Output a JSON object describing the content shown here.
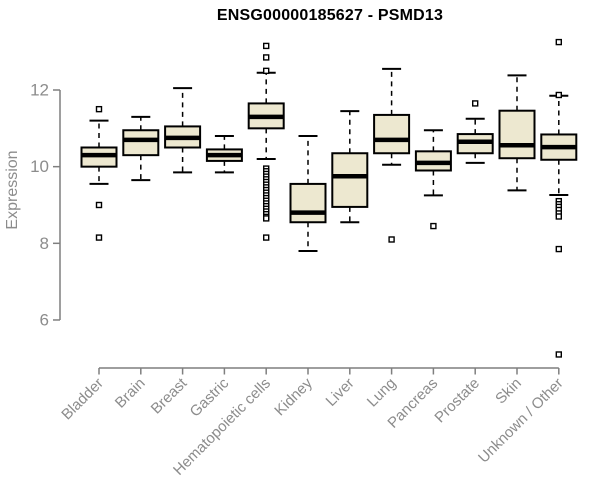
{
  "colors": {
    "box_fill": "#EDE8D0",
    "box_line": "#000000",
    "median_line": "#000000",
    "whisker_line": "#000000",
    "flier_fill": "#FFFFFF",
    "axis": "#7F7F7F",
    "tick_label": "#8C8C8C",
    "title_color": "#000000",
    "background": "#FFFFFF"
  },
  "chart_data": {
    "type": "boxplot",
    "title": "ENSG00000185627 - PSMD13",
    "xlabel": "",
    "ylabel": "Expression",
    "yticks": [
      6,
      8,
      10,
      12
    ],
    "ylim": [
      5.0,
      13.5
    ],
    "grid": false,
    "legend": "none",
    "categories": [
      "Bladder",
      "Brain",
      "Breast",
      "Gastric",
      "Hematopoietic cells",
      "Kidney",
      "Liver",
      "Lung",
      "Pancreas",
      "Prostate",
      "Skin",
      "Unknown / Other"
    ],
    "boxes": [
      {
        "category": "Bladder",
        "whislo": 9.55,
        "q1": 10.0,
        "med": 10.3,
        "q3": 10.5,
        "whishi": 11.2,
        "fliers": [
          11.5,
          9.0,
          8.15
        ]
      },
      {
        "category": "Brain",
        "whislo": 9.65,
        "q1": 10.3,
        "med": 10.7,
        "q3": 10.95,
        "whishi": 11.3,
        "fliers": []
      },
      {
        "category": "Breast",
        "whislo": 9.85,
        "q1": 10.5,
        "med": 10.75,
        "q3": 11.05,
        "whishi": 12.05,
        "fliers": []
      },
      {
        "category": "Gastric",
        "whislo": 9.85,
        "q1": 10.15,
        "med": 10.3,
        "q3": 10.45,
        "whishi": 10.8,
        "fliers": []
      },
      {
        "category": "Hematopoietic cells",
        "whislo": 10.2,
        "q1": 11.0,
        "med": 11.3,
        "q3": 11.65,
        "whishi": 12.45,
        "fliers": [
          13.15,
          12.85,
          12.5,
          9.95,
          9.88,
          9.81,
          9.74,
          9.67,
          9.6,
          9.53,
          9.46,
          9.39,
          9.32,
          9.25,
          9.18,
          9.11,
          9.04,
          8.97,
          8.9,
          8.83,
          8.76,
          8.69,
          8.65,
          8.15
        ]
      },
      {
        "category": "Kidney",
        "whislo": 7.8,
        "q1": 8.55,
        "med": 8.8,
        "q3": 9.55,
        "whishi": 10.8,
        "fliers": []
      },
      {
        "category": "Liver",
        "whislo": 8.55,
        "q1": 8.95,
        "med": 9.75,
        "q3": 10.35,
        "whishi": 11.45,
        "fliers": []
      },
      {
        "category": "Lung",
        "whislo": 10.05,
        "q1": 10.35,
        "med": 10.7,
        "q3": 11.35,
        "whishi": 12.55,
        "fliers": [
          8.1
        ]
      },
      {
        "category": "Pancreas",
        "whislo": 9.25,
        "q1": 9.9,
        "med": 10.1,
        "q3": 10.4,
        "whishi": 10.95,
        "fliers": [
          8.45
        ]
      },
      {
        "category": "Prostate",
        "whislo": 10.1,
        "q1": 10.35,
        "med": 10.65,
        "q3": 10.85,
        "whishi": 11.25,
        "fliers": [
          11.65
        ]
      },
      {
        "category": "Skin",
        "whislo": 9.38,
        "q1": 10.22,
        "med": 10.56,
        "q3": 11.46,
        "whishi": 12.38,
        "fliers": []
      },
      {
        "category": "Unknown / Other",
        "whislo": 9.26,
        "q1": 10.18,
        "med": 10.51,
        "q3": 10.84,
        "whishi": 11.85,
        "fliers": [
          13.25,
          11.87,
          9.1,
          9.02,
          8.95,
          8.87,
          8.78,
          8.7,
          7.85,
          5.1
        ]
      }
    ]
  }
}
